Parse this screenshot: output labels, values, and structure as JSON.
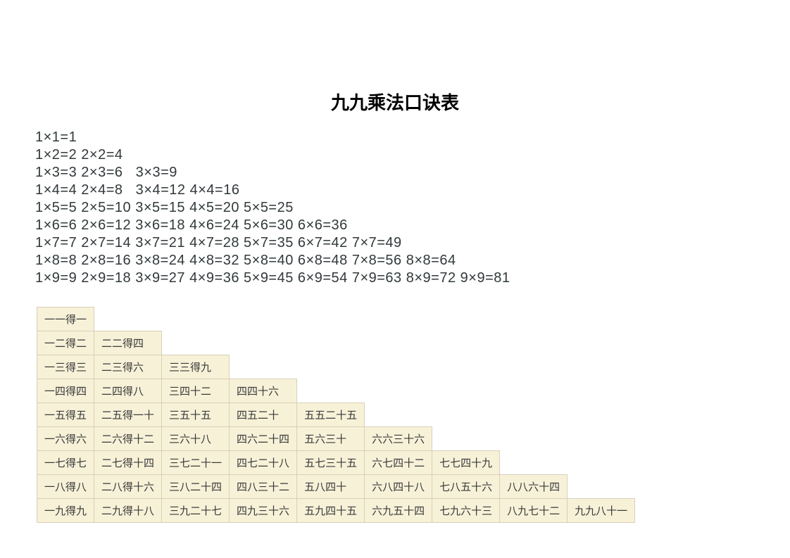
{
  "title": "九九乘法口诀表",
  "numeric_rows": [
    "1×1=1",
    "1×2=2 2×2=4",
    "1×3=3 2×3=6   3×3=9",
    "1×4=4 2×4=8   3×4=12 4×4=16",
    "1×5=5 2×5=10 3×5=15 4×5=20 5×5=25",
    "1×6=6 2×6=12 3×6=18 4×6=24 5×6=30 6×6=36",
    "1×7=7 2×7=14 3×7=21 4×7=28 5×7=35 6×7=42 7×7=49",
    "1×8=8 2×8=16 3×8=24 4×8=32 5×8=40 6×8=48 7×8=56 8×8=64",
    "1×9=9 2×9=18 3×9=27 4×9=36 5×9=45 6×9=54 7×9=63 8×9=72 9×9=81"
  ],
  "chinese_rows": [
    [
      "一一得一"
    ],
    [
      "一二得二",
      "二二得四"
    ],
    [
      "一三得三",
      "二三得六",
      "三三得九"
    ],
    [
      "一四得四",
      "二四得八",
      "三四十二",
      "四四十六"
    ],
    [
      "一五得五",
      "二五得一十",
      "三五十五",
      "四五二十",
      "五五二十五"
    ],
    [
      "一六得六",
      "二六得十二",
      "三六十八",
      "四六二十四",
      "五六三十",
      "六六三十六"
    ],
    [
      "一七得七",
      "二七得十四",
      "三七二十一",
      "四七二十八",
      "五七三十五",
      "六七四十二",
      "七七四十九"
    ],
    [
      "一八得八",
      "二八得十六",
      "三八二十四",
      "四八三十二",
      "五八四十",
      "六八四十八",
      "七八五十六",
      "八八六十四"
    ],
    [
      "一九得九",
      "二九得十八",
      "三九二十七",
      "四九三十六",
      "五九四十五",
      "六九五十四",
      "七九六十三",
      "八九七十二",
      "九九八十一"
    ]
  ],
  "style": {
    "title_fontsize": 26,
    "numeric_fontsize": 20,
    "numeric_color": "#31393a",
    "cell_bg": "#f7f1d8",
    "cell_border": "#d8d0b8",
    "cell_fontsize": 15,
    "cell_text_color": "#3a3a3a",
    "page_bg": "#ffffff"
  }
}
